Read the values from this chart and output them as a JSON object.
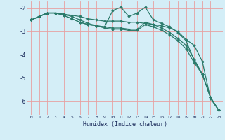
{
  "title": "",
  "xlabel": "Humidex (Indice chaleur)",
  "bg_color": "#d4eef7",
  "grid_color": "#e8a0a0",
  "line_color": "#2a7a6a",
  "xlim": [
    -0.5,
    23.5
  ],
  "ylim": [
    -6.6,
    -1.7
  ],
  "yticks": [
    -2,
    -3,
    -4,
    -5,
    -6
  ],
  "xticks": [
    0,
    1,
    2,
    3,
    4,
    5,
    6,
    7,
    8,
    9,
    10,
    11,
    12,
    13,
    14,
    15,
    16,
    17,
    18,
    19,
    20,
    21,
    22,
    23
  ],
  "series": [
    {
      "points": [
        [
          0,
          -2.5
        ],
        [
          1,
          -2.35
        ],
        [
          2,
          -2.2
        ],
        [
          3,
          -2.2
        ],
        [
          4,
          -2.25
        ],
        [
          5,
          -2.3
        ],
        [
          6,
          -2.35
        ],
        [
          7,
          -2.45
        ],
        [
          8,
          -2.5
        ],
        [
          9,
          -2.55
        ],
        [
          10,
          -2.55
        ],
        [
          11,
          -2.55
        ],
        [
          12,
          -2.6
        ],
        [
          13,
          -2.6
        ],
        [
          14,
          -2.65
        ],
        [
          15,
          -2.7
        ],
        [
          16,
          -2.75
        ],
        [
          17,
          -2.85
        ],
        [
          18,
          -3.0
        ],
        [
          19,
          -3.35
        ],
        [
          20,
          -3.6
        ],
        [
          21,
          -4.3
        ],
        [
          22,
          -5.9
        ],
        [
          23,
          -6.4
        ]
      ]
    },
    {
      "points": [
        [
          0,
          -2.5
        ],
        [
          1,
          -2.35
        ],
        [
          2,
          -2.2
        ],
        [
          3,
          -2.2
        ],
        [
          4,
          -2.25
        ],
        [
          5,
          -2.35
        ],
        [
          6,
          -2.5
        ],
        [
          7,
          -2.65
        ],
        [
          8,
          -2.75
        ],
        [
          9,
          -2.8
        ],
        [
          10,
          -2.1
        ],
        [
          11,
          -1.95
        ],
        [
          12,
          -2.35
        ],
        [
          13,
          -2.2
        ],
        [
          14,
          -1.95
        ],
        [
          15,
          -2.5
        ],
        [
          16,
          -2.65
        ],
        [
          17,
          -2.8
        ],
        [
          18,
          -3.05
        ],
        [
          19,
          -3.4
        ],
        [
          20,
          -4.25
        ],
        [
          21,
          -4.85
        ],
        [
          22,
          -5.85
        ],
        [
          23,
          -6.4
        ]
      ]
    },
    {
      "points": [
        [
          0,
          -2.5
        ],
        [
          1,
          -2.35
        ],
        [
          2,
          -2.2
        ],
        [
          3,
          -2.2
        ],
        [
          4,
          -2.3
        ],
        [
          5,
          -2.45
        ],
        [
          6,
          -2.6
        ],
        [
          7,
          -2.7
        ],
        [
          8,
          -2.75
        ],
        [
          9,
          -2.8
        ],
        [
          10,
          -2.85
        ],
        [
          11,
          -2.85
        ],
        [
          12,
          -2.9
        ],
        [
          13,
          -2.9
        ],
        [
          14,
          -2.6
        ],
        [
          15,
          -2.7
        ],
        [
          16,
          -2.85
        ],
        [
          17,
          -3.05
        ],
        [
          18,
          -3.3
        ],
        [
          19,
          -3.6
        ],
        [
          20,
          -4.2
        ],
        [
          21,
          -4.85
        ],
        [
          22,
          -5.85
        ],
        [
          23,
          -6.4
        ]
      ]
    },
    {
      "points": [
        [
          0,
          -2.5
        ],
        [
          1,
          -2.35
        ],
        [
          2,
          -2.2
        ],
        [
          3,
          -2.2
        ],
        [
          4,
          -2.3
        ],
        [
          5,
          -2.45
        ],
        [
          6,
          -2.6
        ],
        [
          7,
          -2.7
        ],
        [
          8,
          -2.75
        ],
        [
          9,
          -2.85
        ],
        [
          10,
          -2.9
        ],
        [
          11,
          -2.9
        ],
        [
          12,
          -2.95
        ],
        [
          13,
          -2.95
        ],
        [
          14,
          -2.7
        ],
        [
          15,
          -2.8
        ],
        [
          16,
          -2.95
        ],
        [
          17,
          -3.15
        ],
        [
          18,
          -3.4
        ],
        [
          19,
          -3.75
        ],
        [
          20,
          -4.35
        ],
        [
          21,
          -4.85
        ],
        [
          22,
          -5.85
        ],
        [
          23,
          -6.4
        ]
      ]
    }
  ]
}
